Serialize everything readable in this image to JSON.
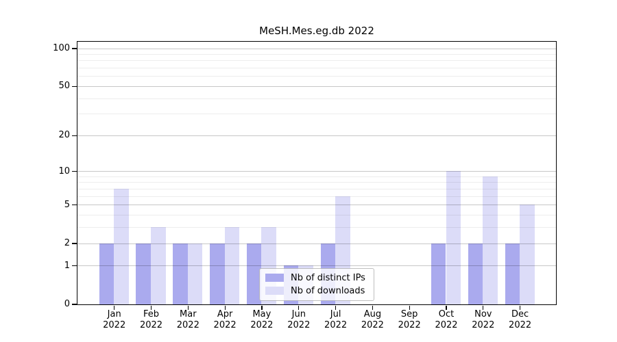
{
  "title": "MeSH.Mes.eg.db 2022",
  "legend": {
    "items": [
      {
        "label": "Nb of distinct IPs",
        "color": "#aaaaee"
      },
      {
        "label": "Nb of downloads",
        "color": "#dcdcf8"
      }
    ]
  },
  "colors": {
    "bar_distinct_ips": "#aaaaee",
    "bar_downloads": "#dcdcf8",
    "axis": "#000000",
    "gridline_major": "#c6c6c6",
    "gridline_minor": "#ededed",
    "legend_background": "rgba(255,255,255,0.8)"
  },
  "chart_data": {
    "type": "bar",
    "title": "MeSH.Mes.eg.db 2022",
    "categories": [
      "Jan",
      "Feb",
      "Mar",
      "Apr",
      "May",
      "Jun",
      "Jul",
      "Aug",
      "Sep",
      "Oct",
      "Nov",
      "Dec"
    ],
    "year": "2022",
    "series": [
      {
        "name": "Nb of distinct IPs",
        "color": "#aaaaee",
        "values": [
          2,
          2,
          2,
          2,
          2,
          1,
          2,
          0,
          0,
          2,
          2,
          2
        ]
      },
      {
        "name": "Nb of downloads",
        "color": "#dcdcf8",
        "values": [
          7,
          3,
          2,
          3,
          3,
          1,
          6,
          0,
          0,
          10,
          9,
          5
        ]
      }
    ],
    "xlabel": "",
    "ylabel": "",
    "yscale": "log1p",
    "yticks_major": [
      0,
      1,
      2,
      5,
      10,
      20,
      50,
      100
    ],
    "yticks_minor": [
      3,
      4,
      6,
      7,
      8,
      9,
      30,
      40,
      60,
      70,
      80,
      90
    ],
    "ylim": [
      0,
      113
    ],
    "grid": true,
    "legend_position": "lower center"
  }
}
